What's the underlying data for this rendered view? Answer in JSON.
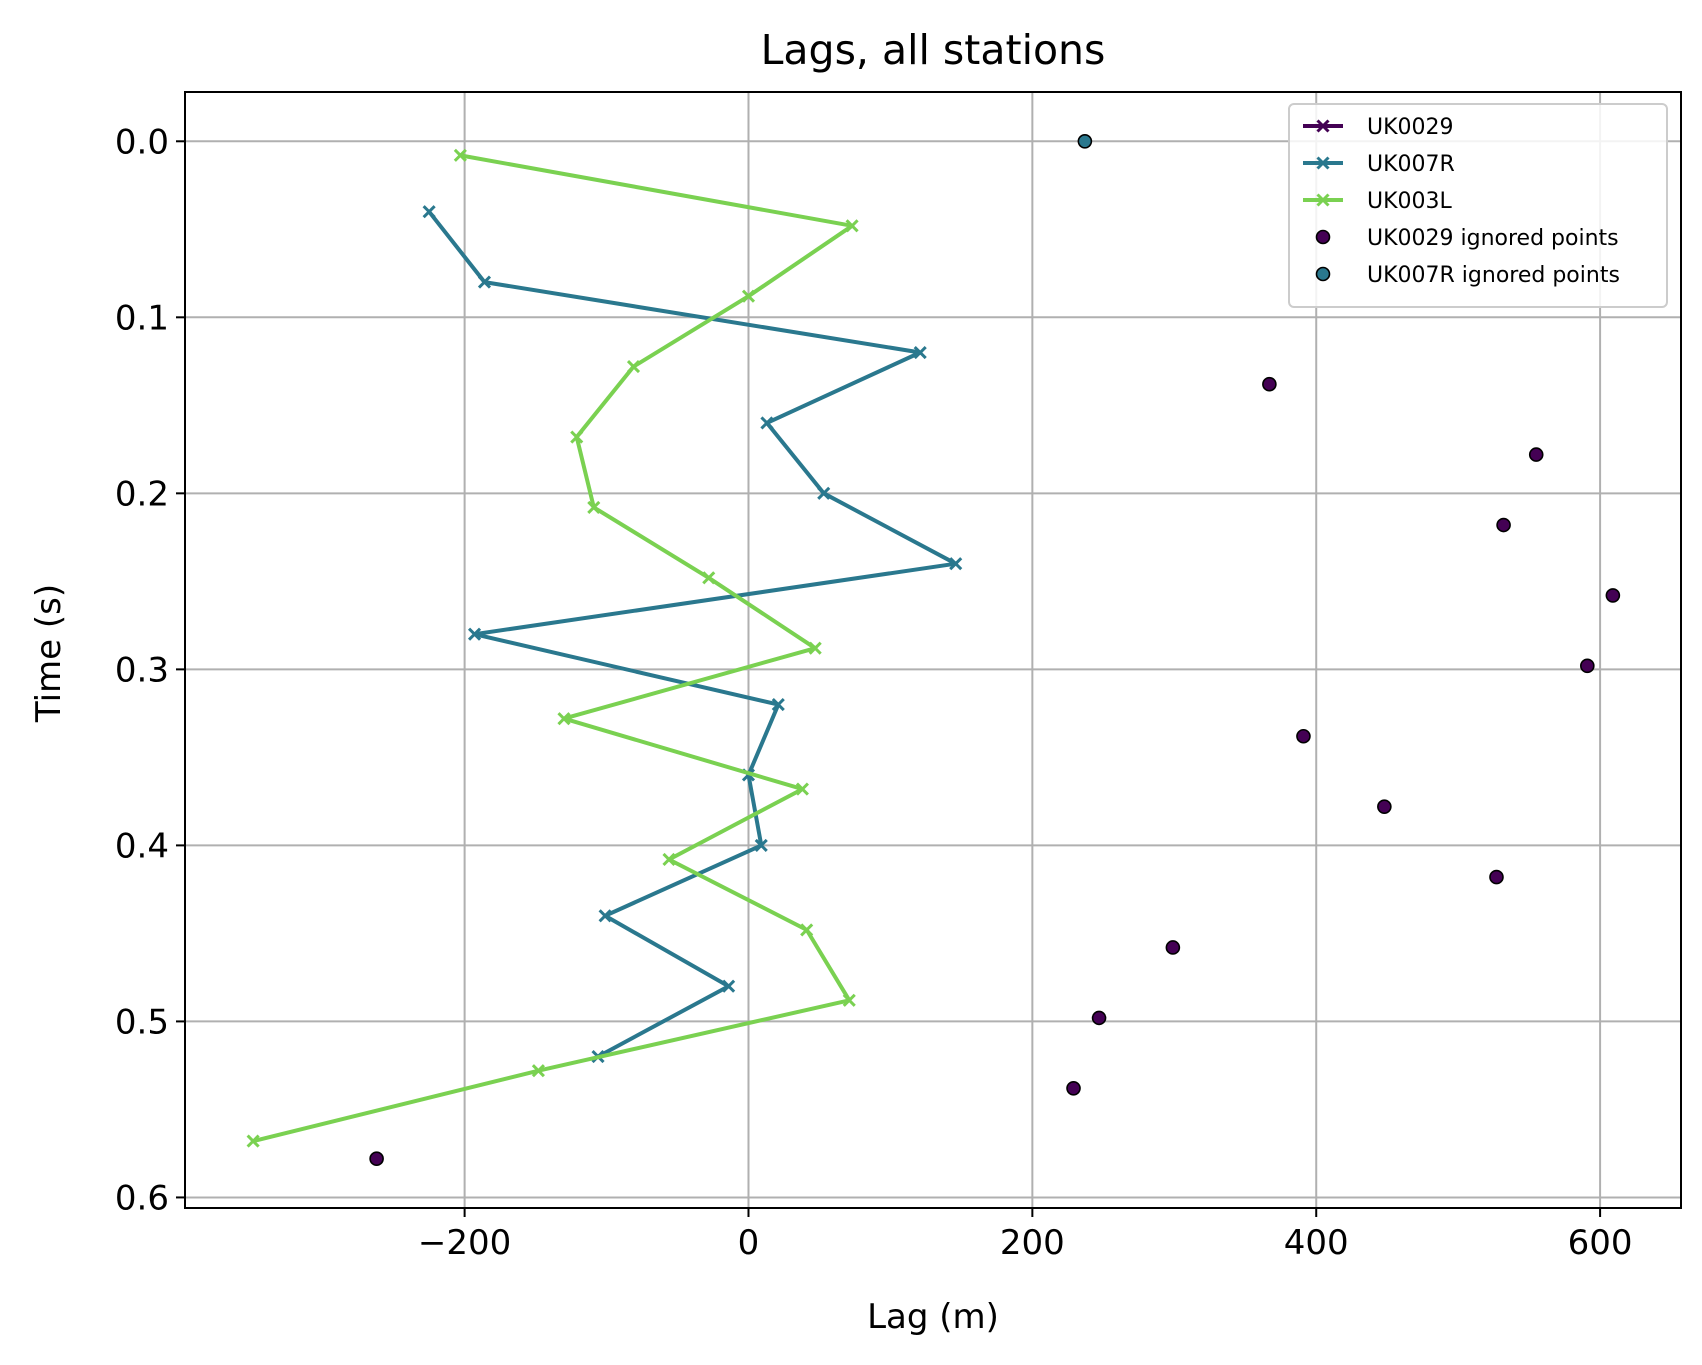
{
  "chart_data": {
    "type": "line",
    "title": "Lags, all stations",
    "xlabel": "Lag (m)",
    "ylabel": "Time (s)",
    "xlim": [
      -397,
      657
    ],
    "ylim": [
      0.606,
      -0.028
    ],
    "y_inverted": true,
    "grid": true,
    "legend_position": "top-right",
    "x_ticks": [
      {
        "value": -200,
        "label": "−200"
      },
      {
        "value": 0,
        "label": "0"
      },
      {
        "value": 200,
        "label": "200"
      },
      {
        "value": 400,
        "label": "400"
      },
      {
        "value": 600,
        "label": "600"
      }
    ],
    "y_ticks": [
      {
        "value": 0.0,
        "label": "0.0"
      },
      {
        "value": 0.1,
        "label": "0.1"
      },
      {
        "value": 0.2,
        "label": "0.2"
      },
      {
        "value": 0.3,
        "label": "0.3"
      },
      {
        "value": 0.4,
        "label": "0.4"
      },
      {
        "value": 0.5,
        "label": "0.5"
      },
      {
        "value": 0.6,
        "label": "0.6"
      }
    ],
    "series": [
      {
        "name": "UK0029",
        "kind": "line",
        "marker": "x",
        "color": "#440154",
        "points": []
      },
      {
        "name": "UK007R",
        "kind": "line",
        "marker": "x",
        "color": "#2a788e",
        "points": [
          [
            -225,
            0.04
          ],
          [
            -186,
            0.08
          ],
          [
            121,
            0.12
          ],
          [
            13,
            0.16
          ],
          [
            53,
            0.2
          ],
          [
            146,
            0.24
          ],
          [
            -193,
            0.28
          ],
          [
            21,
            0.32
          ],
          [
            0,
            0.36
          ],
          [
            9,
            0.4
          ],
          [
            -101,
            0.44
          ],
          [
            -14,
            0.48
          ],
          [
            -106,
            0.52
          ]
        ]
      },
      {
        "name": "UK003L",
        "kind": "line",
        "marker": "x",
        "color": "#7ad151",
        "points": [
          [
            -203,
            0.008
          ],
          [
            73,
            0.048
          ],
          [
            0,
            0.088
          ],
          [
            -81,
            0.128
          ],
          [
            -121,
            0.168
          ],
          [
            -109,
            0.208
          ],
          [
            -28,
            0.248
          ],
          [
            47,
            0.288
          ],
          [
            -130,
            0.328
          ],
          [
            38,
            0.368
          ],
          [
            -56,
            0.408
          ],
          [
            41,
            0.448
          ],
          [
            71,
            0.488
          ],
          [
            -148,
            0.528
          ],
          [
            -349,
            0.568
          ]
        ]
      },
      {
        "name": "UK0029 ignored points",
        "kind": "scatter",
        "color": "#440154",
        "edge_color": "#000000",
        "points": [
          [
            367,
            0.138
          ],
          [
            555,
            0.178
          ],
          [
            532,
            0.218
          ],
          [
            609,
            0.258
          ],
          [
            591,
            0.298
          ],
          [
            391,
            0.338
          ],
          [
            448,
            0.378
          ],
          [
            527,
            0.418
          ],
          [
            299,
            0.458
          ],
          [
            247,
            0.498
          ],
          [
            229,
            0.538
          ],
          [
            -262,
            0.578
          ]
        ]
      },
      {
        "name": "UK007R ignored points",
        "kind": "scatter",
        "color": "#2a788e",
        "edge_color": "#000000",
        "points": [
          [
            237,
            0.0
          ]
        ]
      }
    ]
  }
}
